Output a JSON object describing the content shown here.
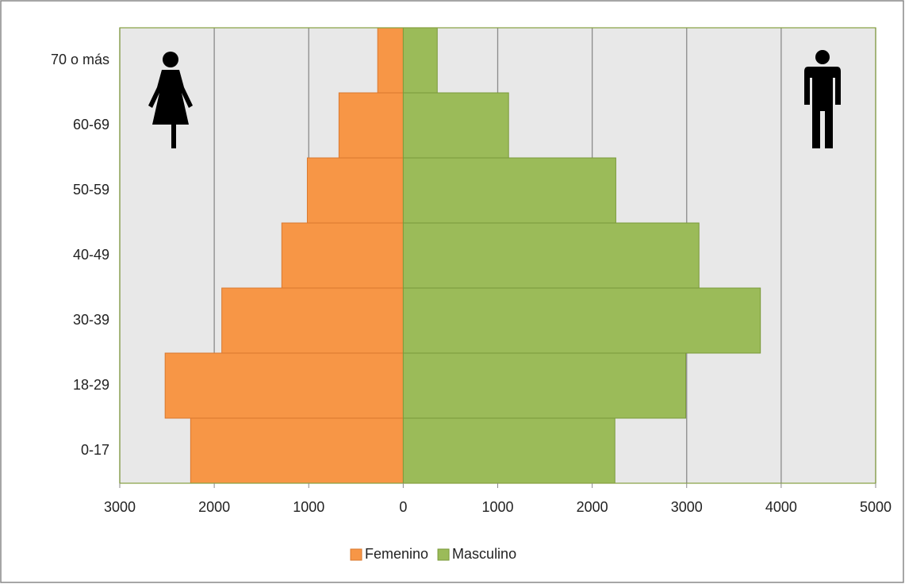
{
  "chart_data": {
    "type": "pyramid",
    "categories": [
      "0-17",
      "18-29",
      "30-39",
      "40-49",
      "50-59",
      "60-69",
      "70 o más"
    ],
    "series": [
      {
        "name": "Femenino",
        "color": "#f79646",
        "values": [
          -2250,
          -2520,
          -1920,
          -1285,
          -1015,
          -680,
          -270
        ]
      },
      {
        "name": "Masculino",
        "color": "#9bbb59",
        "values": [
          2240,
          2990,
          3780,
          3130,
          2250,
          1115,
          360
        ]
      }
    ],
    "xlim": [
      -3000,
      5000
    ],
    "xticks": [
      {
        "value": -3000,
        "label": "3000"
      },
      {
        "value": -2000,
        "label": "2000"
      },
      {
        "value": -1000,
        "label": "1000"
      },
      0,
      1000,
      2000,
      3000,
      4000,
      5000
    ],
    "grid": true,
    "legend": "bottom"
  }
}
